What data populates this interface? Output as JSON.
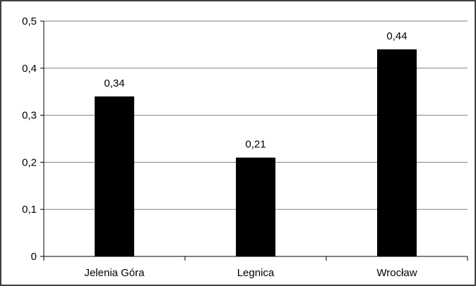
{
  "chart_data": {
    "type": "bar",
    "title": "",
    "xlabel": "",
    "ylabel": "",
    "categories": [
      "Jelenia Góra",
      "Legnica",
      "Wrocław"
    ],
    "values": [
      0.34,
      0.21,
      0.44
    ],
    "value_labels": [
      "0,34",
      "0,21",
      "0,44"
    ],
    "ylim": [
      0,
      0.5
    ],
    "yticks": [
      0,
      0.1,
      0.2,
      0.3,
      0.4,
      0.5
    ],
    "ytick_labels": [
      "0",
      "0,1",
      "0,2",
      "0,3",
      "0,4",
      "0,5"
    ],
    "grid": true,
    "legend": "none",
    "bar_color": "#000000",
    "grid_color": "#808080",
    "frame_color": "#000000"
  }
}
